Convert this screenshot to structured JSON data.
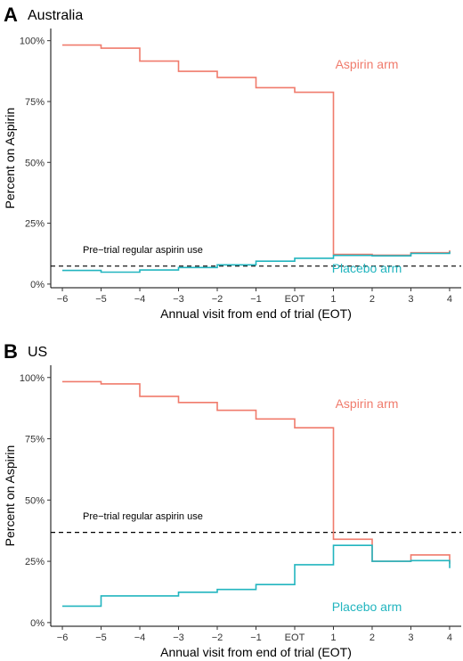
{
  "chart_data": [
    {
      "type": "line",
      "step": true,
      "panel_letter": "A",
      "title": "Australia",
      "xlabel": "Annual visit from end of trial (EOT)",
      "ylabel": "Percent on Aspirin",
      "x_ticks": [
        "−6",
        "−5",
        "−4",
        "−3",
        "−2",
        "−1",
        "EOT",
        "1",
        "2",
        "3",
        "4"
      ],
      "x_values": [
        -6,
        -5,
        -4,
        -3,
        -2,
        -1,
        0,
        1,
        2,
        3,
        4
      ],
      "y_ticks": [
        "0%",
        "25%",
        "50%",
        "75%",
        "100%"
      ],
      "y_tick_values": [
        0,
        25,
        50,
        75,
        100
      ],
      "xlim": [
        -6.3,
        4.3
      ],
      "ylim": [
        -1.5,
        105
      ],
      "grid": false,
      "series": [
        {
          "name": "Aspirin arm",
          "color": "#f07b6c",
          "x": [
            -6,
            -5,
            -4,
            -3,
            -2,
            -1,
            0,
            1,
            2,
            3,
            4
          ],
          "y": [
            98.2,
            96.9,
            91.6,
            87.4,
            84.9,
            80.7,
            78.8,
            12.2,
            11.9,
            12.9,
            13.9
          ]
        },
        {
          "name": "Placebo arm",
          "color": "#22b5bf",
          "x": [
            -6,
            -5,
            -4,
            -3,
            -2,
            -1,
            0,
            1,
            2,
            3,
            4
          ],
          "y": [
            5.6,
            4.9,
            5.8,
            6.8,
            7.9,
            9.4,
            10.6,
            11.8,
            11.6,
            12.6,
            13.4
          ]
        }
      ],
      "reference_line": {
        "y": 7.4,
        "label": "Pre−trial regular aspirin use",
        "style": "dashed"
      }
    },
    {
      "type": "line",
      "step": true,
      "panel_letter": "B",
      "title": "US",
      "xlabel": "Annual visit from end of trial (EOT)",
      "ylabel": "Percent on Aspirin",
      "x_ticks": [
        "−6",
        "−5",
        "−4",
        "−3",
        "−2",
        "−1",
        "EOT",
        "1",
        "2",
        "3",
        "4"
      ],
      "x_values": [
        -6,
        -5,
        -4,
        -3,
        -2,
        -1,
        0,
        1,
        2,
        3,
        4
      ],
      "y_ticks": [
        "0%",
        "25%",
        "50%",
        "75%",
        "100%"
      ],
      "y_tick_values": [
        0,
        25,
        50,
        75,
        100
      ],
      "xlim": [
        -6.3,
        4.3
      ],
      "ylim": [
        -1.5,
        105
      ],
      "grid": false,
      "series": [
        {
          "name": "Aspirin arm",
          "color": "#f07b6c",
          "x": [
            -6,
            -5,
            -4,
            -3,
            -2,
            -1,
            0,
            1,
            2,
            3,
            4
          ],
          "y": [
            98.3,
            97.4,
            92.3,
            89.8,
            86.6,
            83.1,
            79.5,
            34.0,
            25.0,
            27.6,
            24.0
          ]
        },
        {
          "name": "Placebo arm",
          "color": "#22b5bf",
          "x": [
            -6,
            -5,
            -4,
            -3,
            -2,
            -1,
            0,
            1,
            2,
            3,
            4
          ],
          "y": [
            6.7,
            10.9,
            10.9,
            12.4,
            13.5,
            15.5,
            23.6,
            31.5,
            25.0,
            25.3,
            22.2
          ]
        }
      ],
      "reference_line": {
        "y": 36.8,
        "label": "Pre−trial regular aspirin use",
        "style": "dashed"
      }
    }
  ]
}
